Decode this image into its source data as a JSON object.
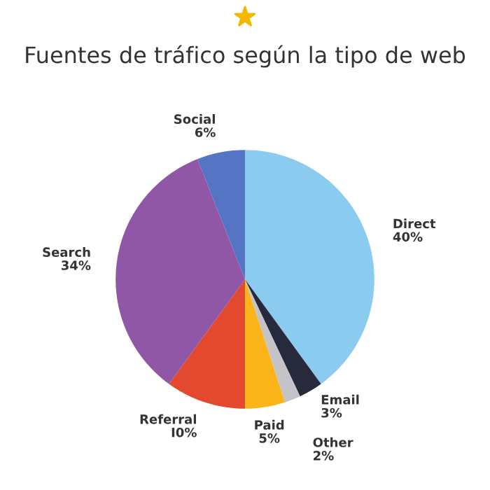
{
  "chart_data": {
    "type": "pie",
    "title": "Fuentes de tráfico según la tipo de web",
    "categories": [
      "Direct",
      "Email",
      "Other",
      "Paid",
      "Referral",
      "Search",
      "Social"
    ],
    "values": [
      40,
      3,
      2,
      5,
      10,
      34,
      6
    ],
    "colors": [
      "#8ccbf0",
      "#262a3c",
      "#c4c4c8",
      "#fbb51b",
      "#e2492f",
      "#8f57a6",
      "#5574c4"
    ],
    "value_labels": [
      "40%",
      "3%",
      "2%",
      "5%",
      "I0%",
      "34%",
      "6%"
    ]
  }
}
